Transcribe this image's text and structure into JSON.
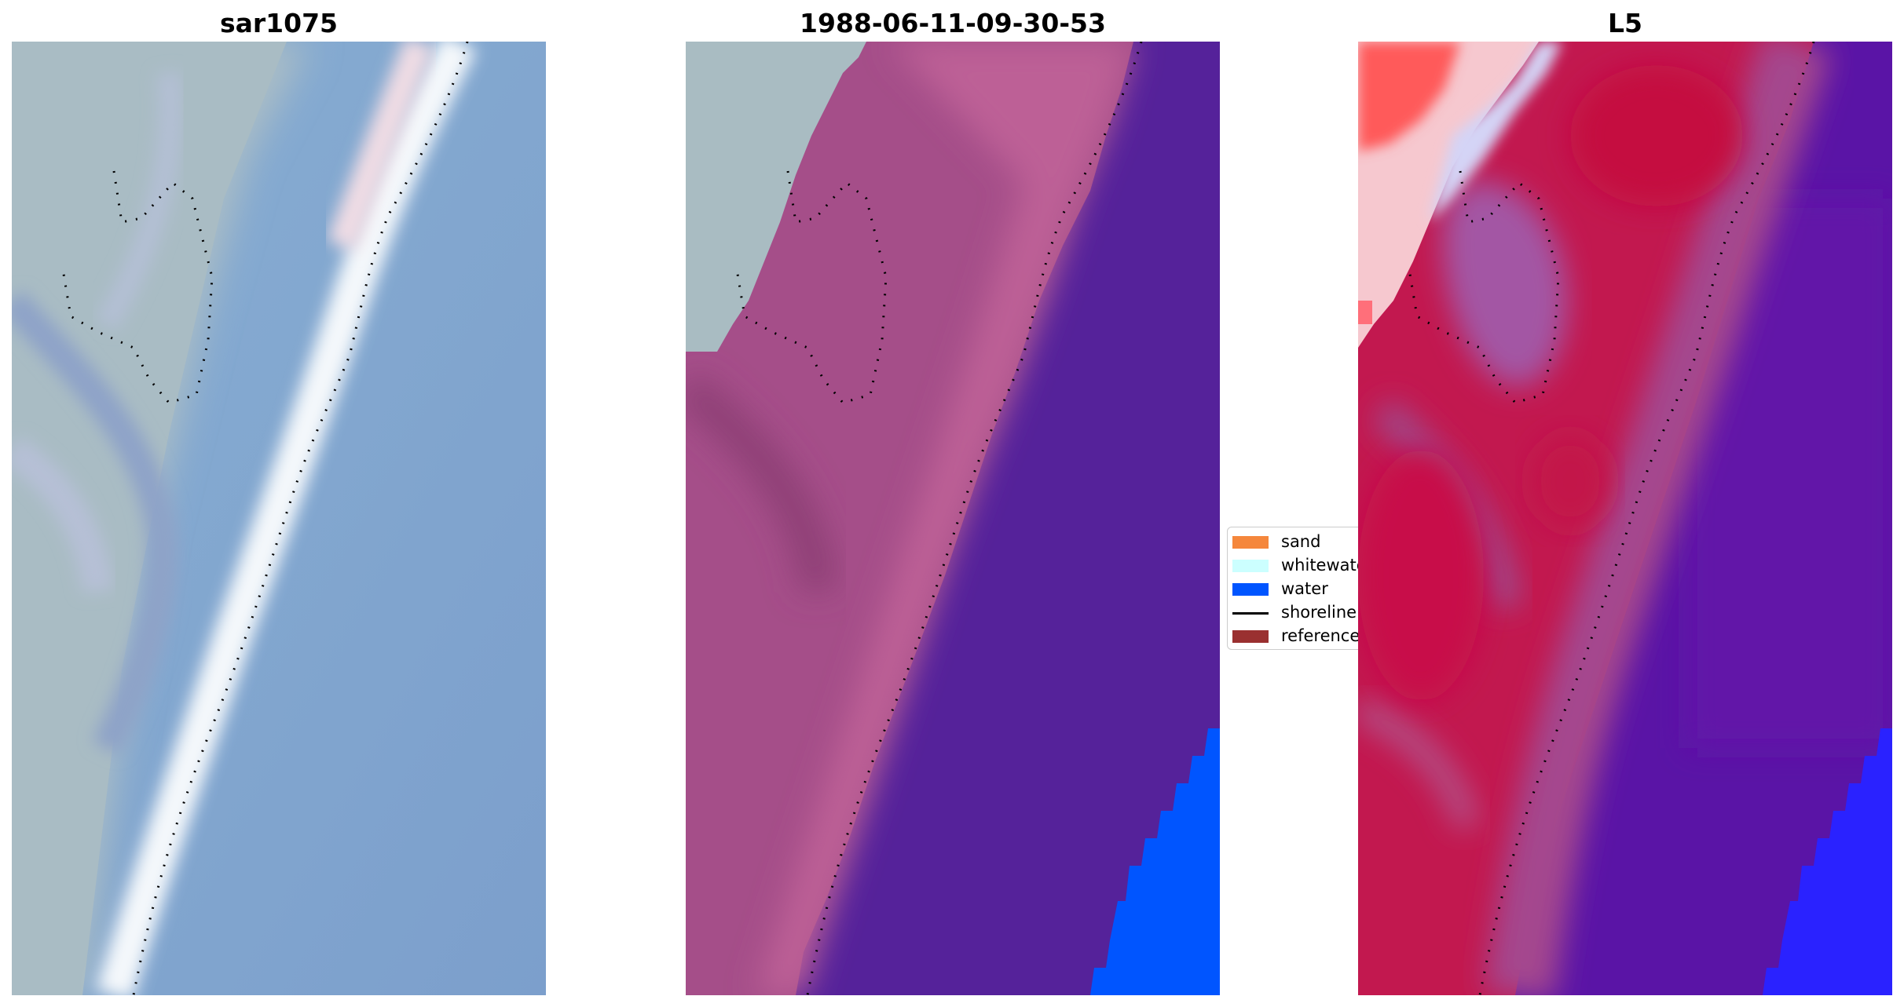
{
  "panels": [
    {
      "title": "sar1075"
    },
    {
      "title": "1988-06-11-09-30-53"
    },
    {
      "title": "L5"
    }
  ],
  "legend": {
    "items": [
      {
        "label": "sand",
        "color": "#f5873c",
        "kind": "patch"
      },
      {
        "label": "whitewater",
        "color": "#ccffff",
        "kind": "patch"
      },
      {
        "label": "water",
        "color": "#0055ff",
        "kind": "patch"
      },
      {
        "label": "shoreline",
        "color": "#000000",
        "kind": "line"
      },
      {
        "label": "reference",
        "color": "#9a3030",
        "kind": "patch"
      }
    ]
  }
}
